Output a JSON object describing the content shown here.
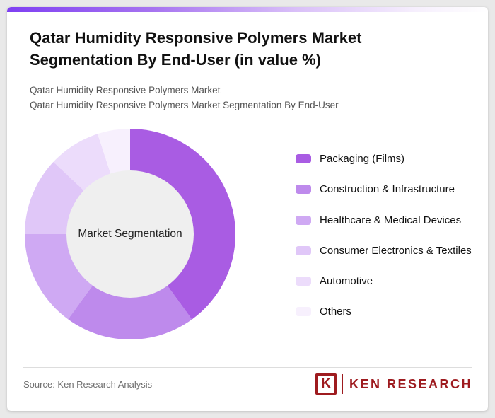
{
  "page": {
    "title": "Qatar Humidity Responsive Polymers Market Segmentation By End-User (in value %)",
    "subtitle_line1": "Qatar Humidity Responsive Polymers Market",
    "subtitle_line2": "Qatar Humidity Responsive Polymers Market Segmentation By End-User"
  },
  "chart_data": {
    "type": "pie",
    "subtype": "donut",
    "title": "Qatar Humidity Responsive Polymers Market Segmentation By End-User (in value %)",
    "center_label": "Market Segmentation",
    "legend_position": "right",
    "categories": [
      "Packaging (Films)",
      "Construction & Infrastructure",
      "Healthcare & Medical Devices",
      "Consumer Electronics & Textiles",
      "Automotive",
      "Others"
    ],
    "values": [
      40,
      20,
      15,
      12,
      8,
      5
    ],
    "colors": [
      "#a95ce3",
      "#be8aec",
      "#cfa9f3",
      "#e0c7f8",
      "#ecdcfb",
      "#f7f0fd"
    ],
    "start_angle_deg": 0,
    "direction": "clockwise"
  },
  "footer": {
    "source": "Source: Ken Research Analysis",
    "logo_mark": "K",
    "logo_text": "KEN RESEARCH"
  },
  "theme": {
    "brand_red": "#9e1b1f",
    "accent_purple": "#7e3ff2",
    "donut_hole_color": "#efefef",
    "card_background": "#ffffff",
    "page_background": "#e9e9e9"
  }
}
